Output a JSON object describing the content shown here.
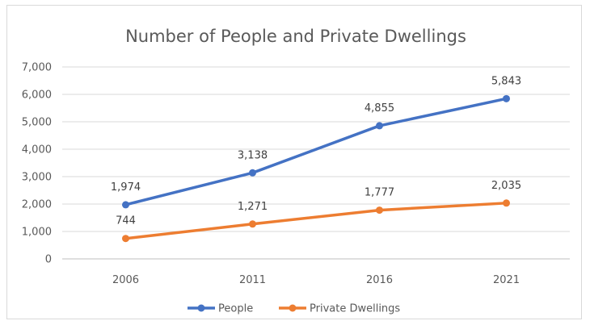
{
  "chart_data": {
    "type": "line",
    "title": "Number of People and Private Dwellings",
    "xlabel": "",
    "ylabel": "",
    "categories": [
      "2006",
      "2011",
      "2016",
      "2021"
    ],
    "ylim": [
      0,
      7000
    ],
    "yticks": [
      0,
      1000,
      2000,
      3000,
      4000,
      5000,
      6000,
      7000
    ],
    "ytick_labels": [
      "0",
      "1,000",
      "2,000",
      "3,000",
      "4,000",
      "5,000",
      "6,000",
      "7,000"
    ],
    "grid": true,
    "legend_position": "bottom",
    "series": [
      {
        "name": "People",
        "color": "#4472C4",
        "values": [
          1974,
          3138,
          4855,
          5843
        ],
        "labels": [
          "1,974",
          "3,138",
          "4,855",
          "5,843"
        ]
      },
      {
        "name": "Private Dwellings",
        "color": "#ED7D31",
        "values": [
          744,
          1271,
          1777,
          2035
        ],
        "labels": [
          "744",
          "1,271",
          "1,777",
          "2,035"
        ]
      }
    ]
  }
}
